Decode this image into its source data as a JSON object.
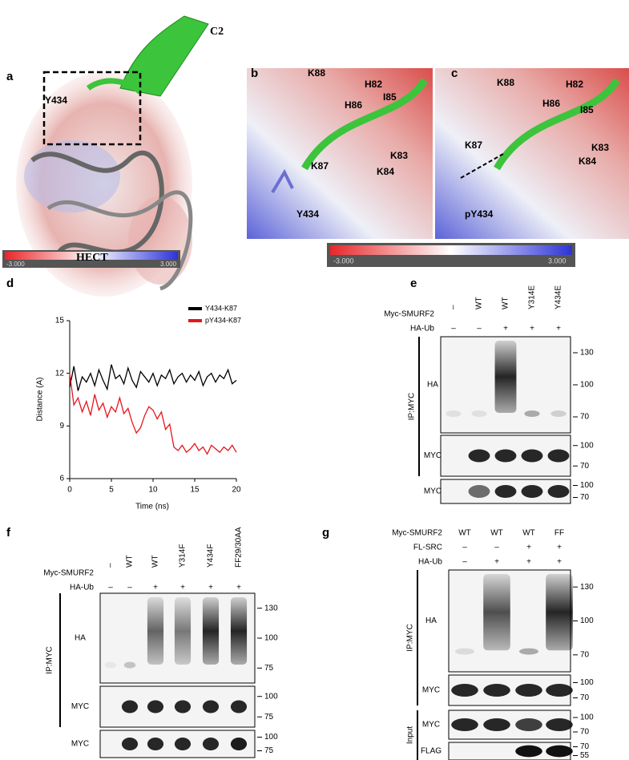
{
  "panels": {
    "a": {
      "letter": "a",
      "labels": [
        "C2",
        "Y434",
        "HECT"
      ],
      "colorbar": [
        "-3.000",
        "3.000"
      ]
    },
    "b": {
      "letter": "b",
      "labels": [
        "K88",
        "H82",
        "H86",
        "I85",
        "K87",
        "K83",
        "K84",
        "Y434"
      ]
    },
    "c": {
      "letter": "c",
      "labels": [
        "K88",
        "H82",
        "H86",
        "I85",
        "K87",
        "K83",
        "K84",
        "pY434"
      ]
    },
    "colorbar": [
      "-3.000",
      "3.000"
    ],
    "d": {
      "letter": "d"
    },
    "e": {
      "letter": "e",
      "rows": [
        {
          "name": "Myc-SMURF2",
          "lanes": [
            "–",
            "WT",
            "WT",
            "Y314E",
            "Y434E"
          ]
        },
        {
          "name": "HA-Ub",
          "lanes": [
            "–",
            "–",
            "+",
            "+",
            "+"
          ]
        }
      ],
      "groups": [
        {
          "name": "IP:MYC",
          "blots": [
            {
              "name": "HA",
              "markers": [
                "130",
                "100",
                "70"
              ]
            },
            {
              "name": "MYC",
              "markers": [
                "100",
                "70"
              ]
            }
          ]
        },
        {
          "blots": [
            {
              "name": "MYC",
              "markers": [
                "100",
                "70"
              ]
            }
          ]
        }
      ]
    },
    "f": {
      "letter": "f",
      "rows": [
        {
          "name": "Myc-SMURF2",
          "lanes": [
            "–",
            "WT",
            "WT",
            "Y314F",
            "Y434F",
            "FF29/30AA"
          ]
        },
        {
          "name": "HA-Ub",
          "lanes": [
            "–",
            "–",
            "+",
            "+",
            "+",
            "+"
          ]
        }
      ],
      "groups": [
        {
          "name": "IP:MYC",
          "blots": [
            {
              "name": "HA",
              "markers": [
                "130",
                "100",
                "75"
              ]
            },
            {
              "name": "MYC",
              "markers": [
                "100",
                "75"
              ]
            }
          ]
        },
        {
          "blots": [
            {
              "name": "MYC",
              "markers": [
                "100",
                "75"
              ]
            }
          ]
        }
      ]
    },
    "g": {
      "letter": "g",
      "rows": [
        {
          "name": "Myc-SMURF2",
          "lanes": [
            "WT",
            "WT",
            "WT",
            "FF"
          ]
        },
        {
          "name": "FL-SRC",
          "lanes": [
            "–",
            "–",
            "+",
            "+"
          ]
        },
        {
          "name": "HA-Ub",
          "lanes": [
            "–",
            "+",
            "+",
            "+"
          ]
        }
      ],
      "groups": [
        {
          "name": "IP:MYC",
          "blots": [
            {
              "name": "HA",
              "markers": [
                "130",
                "100",
                "70"
              ]
            },
            {
              "name": "MYC",
              "markers": [
                "100",
                "70"
              ]
            }
          ]
        },
        {
          "name": "Input",
          "blots": [
            {
              "name": "MYC",
              "markers": [
                "100",
                "70"
              ]
            },
            {
              "name": "FLAG",
              "markers": [
                "70",
                "55"
              ]
            }
          ]
        }
      ]
    }
  },
  "chart_data": {
    "type": "line",
    "xlabel": "Time (ns)",
    "ylabel": "Distance (A)",
    "x": [
      0,
      0.5,
      1,
      1.5,
      2,
      2.5,
      3,
      3.5,
      4,
      4.5,
      5,
      5.5,
      6,
      6.5,
      7,
      7.5,
      8,
      8.5,
      9,
      9.5,
      10,
      10.5,
      11,
      11.5,
      12,
      12.5,
      13,
      13.5,
      14,
      14.5,
      15,
      15.5,
      16,
      16.5,
      17,
      17.5,
      18,
      18.5,
      19,
      19.5,
      20
    ],
    "series": [
      {
        "name": "Y434-K87",
        "color": "#000000",
        "values": [
          11.2,
          12.4,
          11.0,
          11.8,
          11.5,
          12.0,
          11.3,
          12.2,
          11.6,
          11.1,
          12.5,
          11.7,
          11.9,
          11.4,
          12.3,
          11.6,
          11.2,
          12.1,
          11.8,
          11.5,
          12.0,
          11.3,
          11.9,
          11.7,
          12.2,
          11.4,
          11.8,
          12.0,
          11.5,
          11.9,
          11.6,
          12.1,
          11.3,
          11.8,
          12.0,
          11.5,
          11.9,
          11.7,
          12.2,
          11.4,
          11.6
        ]
      },
      {
        "name": "pY434-K87",
        "color": "#e8141c",
        "values": [
          12.0,
          10.2,
          10.6,
          9.8,
          10.4,
          9.6,
          10.8,
          9.9,
          10.3,
          9.5,
          10.1,
          9.8,
          10.6,
          9.7,
          10.0,
          9.2,
          8.6,
          8.9,
          9.6,
          10.1,
          9.9,
          9.4,
          9.8,
          8.8,
          9.1,
          7.8,
          7.6,
          7.9,
          7.5,
          7.7,
          8.0,
          7.6,
          7.8,
          7.4,
          7.9,
          7.7,
          7.5,
          7.8,
          7.6,
          7.9,
          7.5
        ]
      }
    ],
    "xlim": [
      0,
      20
    ],
    "ylim": [
      6,
      15
    ],
    "xticks": [
      0,
      5,
      10,
      15,
      20
    ],
    "yticks": [
      6,
      9,
      12,
      15
    ]
  }
}
